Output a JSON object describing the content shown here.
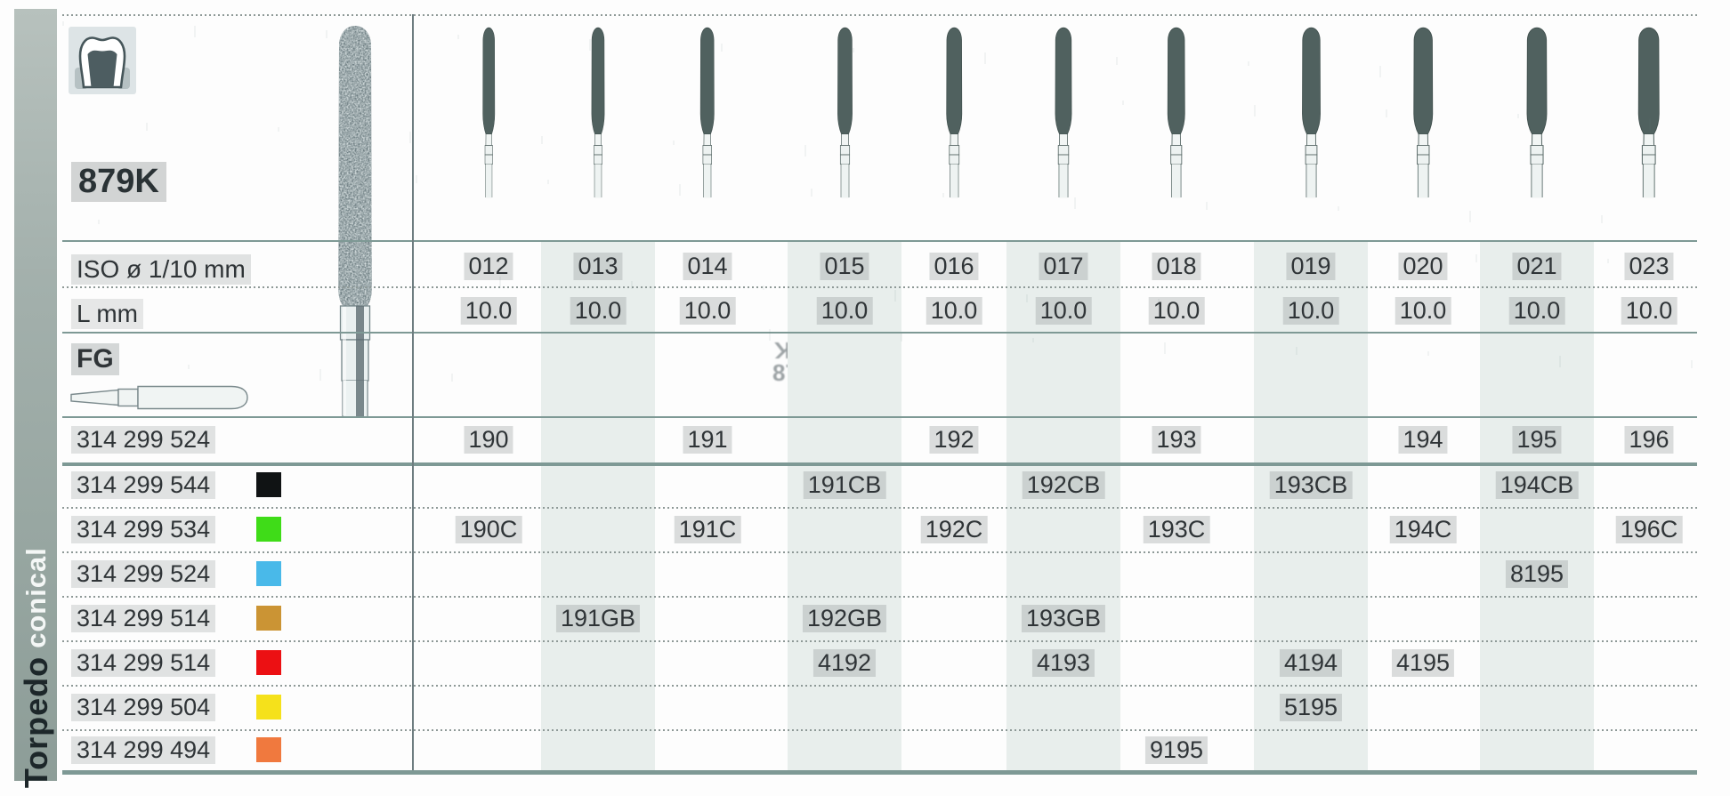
{
  "page": {
    "model": "879K",
    "iso_label": "ISO ø 1/10 mm",
    "length_label": "L mm",
    "shank_label": "FG",
    "series_label": "Torpedo",
    "shape_label": "conical",
    "watermark_line1": "879K",
    "watermark_line2": "879K"
  },
  "columns": {
    "iso_sizes": [
      "012",
      "013",
      "014",
      "015",
      "016",
      "017",
      "018",
      "019",
      "020",
      "021",
      "023"
    ],
    "l_mm": [
      "10.0",
      "10.0",
      "10.0",
      "10.0",
      "10.0",
      "10.0",
      "10.0",
      "10.0",
      "10.0",
      "10.0",
      "10.0"
    ]
  },
  "rows": [
    {
      "code": "314 299 524",
      "color_hex": null,
      "values": {
        "012": "190",
        "014": "191",
        "016": "192",
        "018": "193",
        "020": "194",
        "021": "195",
        "023": "196"
      }
    },
    {
      "code": "314 299 544",
      "color_hex": "#101314",
      "values": {
        "015": "191CB",
        "017": "192CB",
        "019": "193CB",
        "021": "194CB"
      }
    },
    {
      "code": "314 299 534",
      "color_hex": "#3fdc18",
      "values": {
        "012": "190C",
        "014": "191C",
        "016": "192C",
        "018": "193C",
        "020": "194C",
        "023": "196C"
      }
    },
    {
      "code": "314 299 524",
      "color_hex": "#49b9e9",
      "values": {
        "021": "8195"
      }
    },
    {
      "code": "314 299 514",
      "color_hex": "#cb9434",
      "values": {
        "013": "191GB",
        "015": "192GB",
        "017": "193GB"
      }
    },
    {
      "code": "314 299 514",
      "color_hex": "#ec1013",
      "values": {
        "015": "4192",
        "017": "4193",
        "019": "4194",
        "020": "4195"
      }
    },
    {
      "code": "314 299 504",
      "color_hex": "#f5e11b",
      "values": {
        "019": "5195"
      }
    },
    {
      "code": "314 299 494",
      "color_hex": "#f0793e",
      "values": {
        "018": "9195"
      }
    }
  ]
}
